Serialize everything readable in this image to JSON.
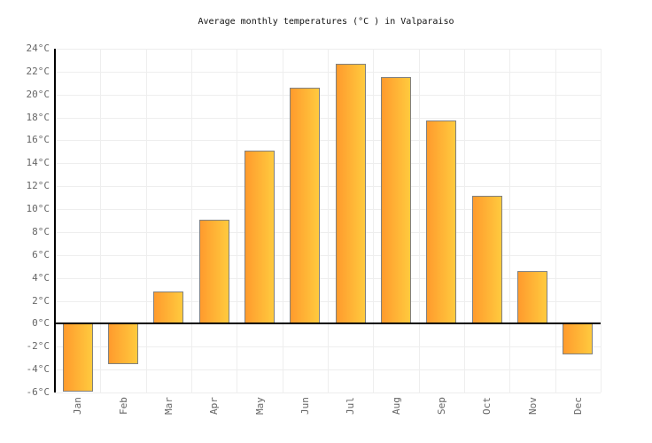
{
  "title": "Average monthly temperatures (°C ) in Valparaiso",
  "chart_data": {
    "type": "bar",
    "title": "Average monthly temperatures (°C ) in Valparaiso",
    "categories": [
      "Jan",
      "Feb",
      "Mar",
      "Apr",
      "May",
      "Jun",
      "Jul",
      "Aug",
      "Sep",
      "Oct",
      "Nov",
      "Dec"
    ],
    "values": [
      -5.9,
      -3.5,
      2.8,
      9.1,
      15.1,
      20.6,
      22.7,
      21.5,
      17.7,
      11.2,
      4.6,
      -2.7
    ],
    "xlabel": "",
    "ylabel": "",
    "ylim": [
      -6,
      24
    ],
    "ytick_step": 2,
    "ytick_suffix": "°C",
    "grid": true,
    "legend": "none",
    "colors": {
      "bar_gradient_left": "#FF9B2D",
      "bar_gradient_right": "#FFCA3E",
      "bar_border": "#808080",
      "grid_line": "#EEEEEE",
      "axis_line": "#000000",
      "zero_line": "#000000",
      "tick_label": "#666666",
      "title_text": "#111111",
      "background": "#FFFFFF"
    }
  }
}
